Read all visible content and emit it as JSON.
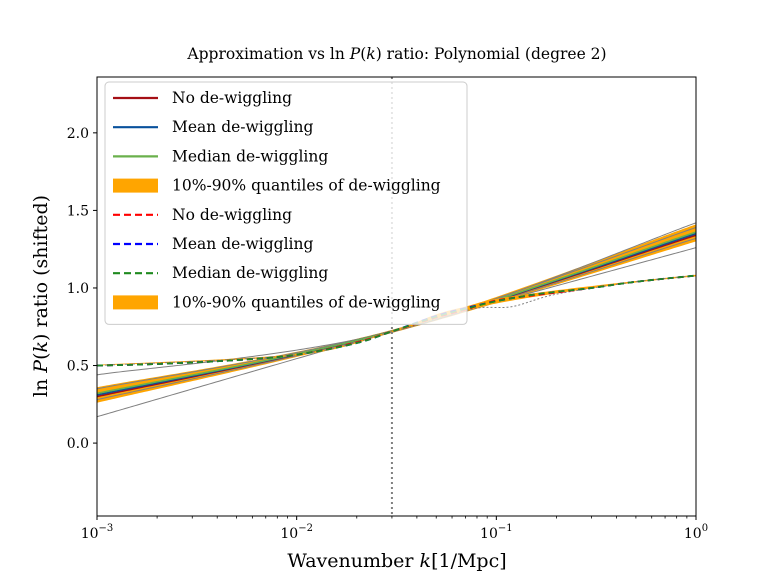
{
  "chart_data": {
    "type": "line",
    "title_parts": [
      "Approximation vs ln ",
      "P",
      "(",
      "k",
      ") ratio: Polynomial (degree 2)"
    ],
    "xlabel_parts": [
      "Wavenumber ",
      "k",
      "[1/Mpc]"
    ],
    "ylabel_parts": [
      "ln ",
      "P",
      "(",
      "k",
      ") ratio (shifted)"
    ],
    "x_scale": "log",
    "xlim": [
      0.001,
      1
    ],
    "ylim": [
      -0.47,
      2.36
    ],
    "x_ticks": [
      {
        "value": 0.001,
        "base": "10",
        "exp": "−3"
      },
      {
        "value": 0.01,
        "base": "10",
        "exp": "−2"
      },
      {
        "value": 0.1,
        "base": "10",
        "exp": "−1"
      },
      {
        "value": 1,
        "base": "10",
        "exp": "0"
      }
    ],
    "y_ticks": [
      {
        "value": 0.0,
        "label": "0.0"
      },
      {
        "value": 0.5,
        "label": "0.5"
      },
      {
        "value": 1.0,
        "label": "1.0"
      },
      {
        "value": 1.5,
        "label": "1.5"
      },
      {
        "value": 2.0,
        "label": "2.0"
      }
    ],
    "grid": false,
    "vertical_line": {
      "x": 0.03,
      "style": "dotted",
      "color": "#808080"
    },
    "legend_position": "upper-left",
    "colors": {
      "no_dewiggling": "#a50f15",
      "mean_dewiggling": "#08519c",
      "median_dewiggling": "#6ab04c",
      "quantile_band": "#ffa500",
      "no_dewiggling_dashed": "#ff0000",
      "mean_dewiggling_dashed": "#0000ff",
      "median_dewiggling_dashed": "#1f8a1f",
      "thin_lines": "#808080"
    },
    "legend": [
      {
        "label": "No de-wiggling",
        "kind": "line",
        "style": "solid",
        "color": "#a50f15"
      },
      {
        "label": "Mean de-wiggling",
        "kind": "line",
        "style": "solid",
        "color": "#08519c"
      },
      {
        "label": "Median de-wiggling",
        "kind": "line",
        "style": "solid",
        "color": "#6ab04c"
      },
      {
        "label": "10%-90% quantiles of de-wiggling",
        "kind": "patch",
        "color": "#ffa500"
      },
      {
        "label": "No de-wiggling",
        "kind": "line",
        "style": "dashed",
        "color": "#ff0000"
      },
      {
        "label": "Mean de-wiggling",
        "kind": "line",
        "style": "dashed",
        "color": "#0000ff"
      },
      {
        "label": "Median de-wiggling",
        "kind": "line",
        "style": "dashed",
        "color": "#1f8a1f"
      },
      {
        "label": "10%-90% quantiles of de-wiggling",
        "kind": "patch",
        "color": "#ffa500"
      }
    ],
    "polynomial_fit": {
      "lines": {
        "no_dewiggling": {
          "x": [
            0.001,
            0.03,
            1
          ],
          "y": [
            0.3,
            0.72,
            1.34
          ]
        },
        "mean_dewiggling": {
          "x": [
            0.001,
            0.03,
            1
          ],
          "y": [
            0.31,
            0.72,
            1.35
          ]
        },
        "median_dewiggling": {
          "x": [
            0.001,
            0.03,
            1
          ],
          "y": [
            0.32,
            0.72,
            1.36
          ]
        }
      },
      "quantile_band": {
        "x": [
          0.001,
          0.03,
          1
        ],
        "y_low": [
          0.26,
          0.71,
          1.3
        ],
        "y_high": [
          0.36,
          0.73,
          1.41
        ]
      },
      "thin_lines": [
        {
          "x": [
            0.001,
            0.03,
            1
          ],
          "y": [
            0.17,
            0.72,
            1.26
          ]
        },
        {
          "x": [
            0.001,
            0.03,
            1
          ],
          "y": [
            0.44,
            0.72,
            1.42
          ]
        },
        {
          "x": [
            0.001,
            0.03,
            1
          ],
          "y": [
            0.28,
            0.715,
            1.32
          ]
        },
        {
          "x": [
            0.001,
            0.03,
            1
          ],
          "y": [
            0.35,
            0.725,
            1.39
          ]
        }
      ]
    },
    "ln_pk_ratio": {
      "lines": {
        "no_dewiggling": {
          "x": [
            0.001,
            0.002,
            0.005,
            0.01,
            0.02,
            0.03,
            0.05,
            0.07,
            0.1,
            0.15,
            0.2,
            0.3,
            0.5,
            1
          ],
          "y": [
            0.5,
            0.51,
            0.535,
            0.57,
            0.65,
            0.72,
            0.81,
            0.86,
            0.92,
            0.95,
            0.97,
            1.0,
            1.04,
            1.08
          ]
        },
        "mean_dewiggling": {
          "x": [
            0.001,
            0.002,
            0.005,
            0.01,
            0.02,
            0.03,
            0.05,
            0.07,
            0.1,
            0.15,
            0.2,
            0.3,
            0.5,
            1
          ],
          "y": [
            0.5,
            0.51,
            0.535,
            0.57,
            0.645,
            0.72,
            0.82,
            0.87,
            0.915,
            0.955,
            0.975,
            1.0,
            1.04,
            1.08
          ]
        },
        "median_dewiggling": {
          "x": [
            0.001,
            0.002,
            0.005,
            0.01,
            0.02,
            0.03,
            0.05,
            0.07,
            0.1,
            0.15,
            0.2,
            0.3,
            0.5,
            1
          ],
          "y": [
            0.5,
            0.51,
            0.535,
            0.57,
            0.645,
            0.72,
            0.815,
            0.865,
            0.915,
            0.955,
            0.975,
            1.0,
            1.04,
            1.08
          ]
        }
      },
      "quantile_band": {
        "x": [
          0.001,
          0.01,
          0.03,
          0.05,
          0.07,
          0.1,
          0.2,
          0.5,
          1
        ],
        "y_low": [
          0.5,
          0.565,
          0.715,
          0.8,
          0.85,
          0.9,
          0.965,
          1.035,
          1.075
        ],
        "y_high": [
          0.505,
          0.575,
          0.725,
          0.83,
          0.88,
          0.93,
          0.985,
          1.045,
          1.085
        ]
      },
      "thin_line": {
        "x": [
          0.001,
          0.01,
          0.03,
          0.05,
          0.08,
          0.12,
          0.2,
          0.5,
          1
        ],
        "y": [
          0.5,
          0.57,
          0.72,
          0.8,
          0.87,
          0.88,
          0.96,
          1.04,
          1.08
        ]
      }
    }
  }
}
